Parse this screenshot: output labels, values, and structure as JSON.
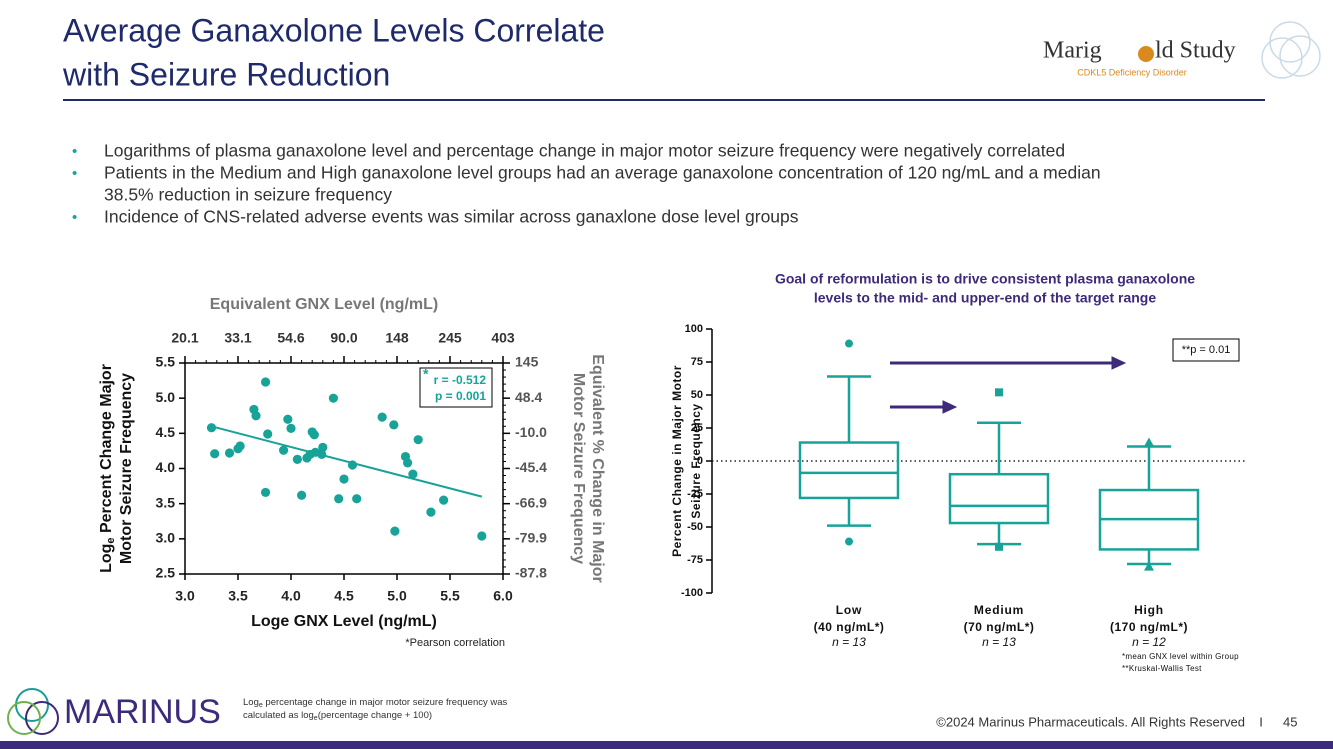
{
  "title": [
    "Average Ganaxolone Levels Correlate",
    "with Seizure Reduction"
  ],
  "logo": {
    "name": [
      "Marig",
      "ld Study"
    ],
    "subtitle": "CDKL5 Deficiency Disorder"
  },
  "bullets": [
    [
      "Logarithms of plasma ganaxolone level and percentage change in major motor seizure frequency were negatively correlated"
    ],
    [
      "Patients in the Medium and High ganaxolone level groups had an average ganaxolone concentration of 120 ng/mL and a median",
      "38.5% reduction in seizure frequency"
    ],
    [
      "Incidence of CNS-related adverse events was similar across ganaxlone dose level groups"
    ]
  ],
  "footer": {
    "company": "MARINUS",
    "note": [
      "Log",
      "e",
      " percentage change in major motor seizure frequency was",
      "calculated as log",
      "e",
      "(percentage change + 100)"
    ],
    "copyright": "©2024 Marinus Pharmaceuticals. All Rights Reserved",
    "separator": "I",
    "page": "45"
  },
  "chart_data": [
    {
      "type": "scatter",
      "color": "#17a398",
      "xlabel": "Loge GNX Level (ng/mL)",
      "ylabel": [
        "Log",
        "e",
        " Percent Change Major",
        "Motor Seizure Frequency"
      ],
      "x2label": "Equivalent GNX Level (ng/mL)",
      "y2label": [
        "Equivalent % Change in Major",
        "Motor  Seizure Frequency"
      ],
      "xlim": [
        3.0,
        6.0
      ],
      "ylim": [
        2.5,
        5.5
      ],
      "xticks": [
        {
          "value": 3,
          "label": "3.0"
        },
        3.5,
        {
          "value": 4,
          "label": "4.0"
        },
        4.5,
        {
          "value": 5,
          "label": "5.0"
        },
        5.5,
        {
          "value": 6,
          "label": "6.0"
        }
      ],
      "yticks": [
        2.5,
        {
          "value": 3,
          "label": "3.0"
        },
        3.5,
        {
          "value": 4,
          "label": "4.0"
        },
        4.5,
        {
          "value": 5,
          "label": "5.0"
        },
        5.5
      ],
      "x2ticks": [
        20.1,
        33.1,
        54.6,
        {
          "value": 90,
          "label": "90.0"
        },
        148,
        245,
        403
      ],
      "y2ticks": [
        -87.8,
        -79.9,
        -66.9,
        -45.4,
        {
          "value": -10,
          "label": "-10.0"
        },
        48.4,
        145
      ],
      "x": [
        3.25,
        3.28,
        3.42,
        3.5,
        3.52,
        3.65,
        3.67,
        3.76,
        3.78,
        3.76,
        3.93,
        3.97,
        4.0,
        4.06,
        4.1,
        4.15,
        4.18,
        4.2,
        4.22,
        4.23,
        4.29,
        4.3,
        4.4,
        4.45,
        4.5,
        4.58,
        4.62,
        4.86,
        4.97,
        4.98,
        5.08,
        5.1,
        5.15,
        5.2,
        5.32,
        5.44,
        5.8
      ],
      "y": [
        4.58,
        4.21,
        4.22,
        4.28,
        4.32,
        4.84,
        4.75,
        5.23,
        4.49,
        3.66,
        4.26,
        4.7,
        4.57,
        4.13,
        3.62,
        4.15,
        4.2,
        4.52,
        4.48,
        4.23,
        4.2,
        4.3,
        5.0,
        3.57,
        3.85,
        4.05,
        3.57,
        4.73,
        4.62,
        3.11,
        4.17,
        4.08,
        3.92,
        4.41,
        3.38,
        3.55,
        3.04
      ],
      "trendline": {
        "x": [
          3.25,
          5.8
        ],
        "y": [
          4.6,
          3.6
        ]
      },
      "annotation": [
        "*",
        "r = -0.512",
        "p = 0.001"
      ],
      "footnote": "*Pearson correlation"
    },
    {
      "type": "box",
      "color": "#17a398",
      "title": [
        "Goal of reformulation is to drive consistent plasma ganaxolone",
        "levels to the mid- and upper-end of the target range"
      ],
      "ylabel": [
        "Percent Change in Major Motor",
        "Seizure Frequency"
      ],
      "ylim": [
        -100,
        100
      ],
      "yticks": [
        -100,
        -75,
        -50,
        -25,
        0,
        25,
        50,
        75,
        100
      ],
      "reference_line": 0,
      "categories": [
        "Low",
        "Medium",
        "High"
      ],
      "sublabels": [
        "(40 ng/mL*)",
        "(70 ng/mL*)",
        "(170 ng/mL*)"
      ],
      "counts": [
        "n = 13",
        "n = 13",
        "n = 12"
      ],
      "boxes": [
        {
          "whislo": -49,
          "q1": -28,
          "med": -9,
          "q3": 14,
          "whishi": 64,
          "fliers": [
            89,
            -61
          ],
          "marker": "circle"
        },
        {
          "whislo": -63,
          "q1": -47,
          "med": -34,
          "q3": -10,
          "whishi": 29,
          "fliers": [
            52,
            -65
          ],
          "marker": "square"
        },
        {
          "whislo": -78,
          "q1": -67,
          "med": -44,
          "q3": -22,
          "whishi": 11,
          "fliers": [
            14,
            -80
          ],
          "marker": "triangle"
        }
      ],
      "annotation": "**p = 0.01",
      "footnotes": [
        "*mean GNX level within Group",
        "**Kruskal-Wallis Test"
      ]
    }
  ]
}
